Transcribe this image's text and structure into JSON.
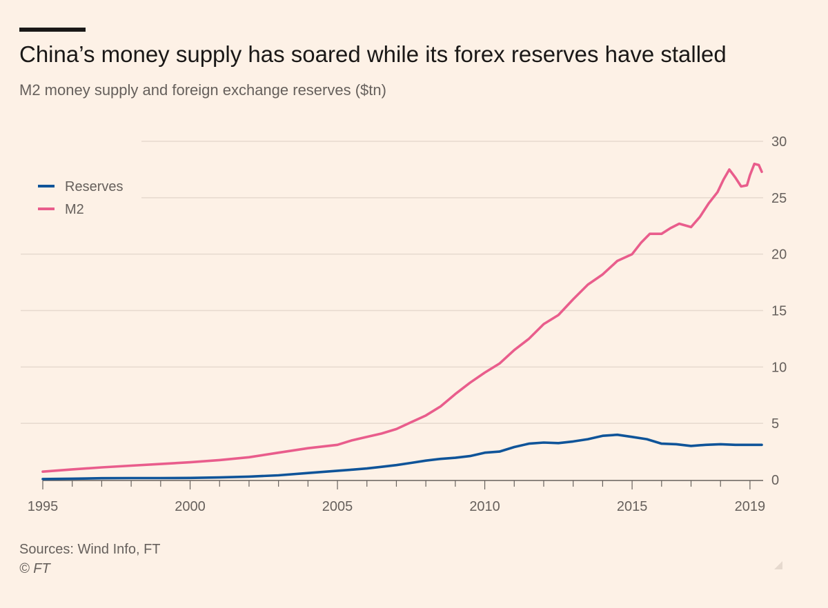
{
  "header": {
    "title": "China’s money supply has soared while its forex reserves have stalled",
    "subtitle": "M2 money supply and foreign exchange reserves ($tn)"
  },
  "footer": {
    "source": "Sources: Wind Info, FT",
    "copyright": "© FT"
  },
  "colors": {
    "background": "#fdf1e6",
    "reserves": "#0f5499",
    "m2": "#e95d8c",
    "grid": "#e6d9ce",
    "axis": "#66605c"
  },
  "chart_data": {
    "type": "line",
    "title": "China’s money supply has soared while its forex reserves have stalled",
    "subtitle": "M2 money supply and foreign exchange reserves ($tn)",
    "xlabel": "",
    "ylabel": "$tn",
    "xlim": [
      1995,
      2019.4
    ],
    "ylim": [
      0,
      30
    ],
    "yticks": [
      0,
      5,
      10,
      15,
      20,
      25,
      30
    ],
    "xtick_labels": [
      {
        "value": 1995,
        "label": "1995"
      },
      {
        "value": 2000,
        "label": "2000"
      },
      {
        "value": 2005,
        "label": "2005"
      },
      {
        "value": 2010,
        "label": "2010"
      },
      {
        "value": 2015,
        "label": "2015"
      },
      {
        "value": 2019,
        "label": "2019"
      }
    ],
    "x_minor_ticks": [
      1995,
      1996,
      1997,
      1998,
      1999,
      2000,
      2001,
      2002,
      2003,
      2004,
      2005,
      2006,
      2007,
      2008,
      2009,
      2010,
      2011,
      2012,
      2013,
      2014,
      2015,
      2016,
      2017,
      2018,
      2019
    ],
    "y_axis_position": "right",
    "grid": true,
    "legend_position": "top-left",
    "series": [
      {
        "name": "Reserves",
        "color": "#0f5499",
        "points": [
          [
            1995.0,
            0.07
          ],
          [
            1996.0,
            0.1
          ],
          [
            1997.0,
            0.14
          ],
          [
            1998.0,
            0.15
          ],
          [
            1999.0,
            0.155
          ],
          [
            2000.0,
            0.165
          ],
          [
            2001.0,
            0.21
          ],
          [
            2002.0,
            0.28
          ],
          [
            2003.0,
            0.4
          ],
          [
            2004.0,
            0.6
          ],
          [
            2005.0,
            0.8
          ],
          [
            2005.5,
            0.9
          ],
          [
            2006.0,
            1.0
          ],
          [
            2006.5,
            1.15
          ],
          [
            2007.0,
            1.3
          ],
          [
            2007.5,
            1.5
          ],
          [
            2008.0,
            1.7
          ],
          [
            2008.5,
            1.85
          ],
          [
            2009.0,
            1.95
          ],
          [
            2009.5,
            2.1
          ],
          [
            2010.0,
            2.4
          ],
          [
            2010.5,
            2.5
          ],
          [
            2011.0,
            2.9
          ],
          [
            2011.5,
            3.2
          ],
          [
            2012.0,
            3.3
          ],
          [
            2012.5,
            3.25
          ],
          [
            2013.0,
            3.4
          ],
          [
            2013.5,
            3.6
          ],
          [
            2014.0,
            3.9
          ],
          [
            2014.5,
            3.99
          ],
          [
            2015.0,
            3.8
          ],
          [
            2015.5,
            3.6
          ],
          [
            2016.0,
            3.2
          ],
          [
            2016.5,
            3.15
          ],
          [
            2017.0,
            3.0
          ],
          [
            2017.5,
            3.1
          ],
          [
            2018.0,
            3.15
          ],
          [
            2018.5,
            3.1
          ],
          [
            2019.0,
            3.1
          ],
          [
            2019.4,
            3.1
          ]
        ]
      },
      {
        "name": "M2",
        "color": "#e95d8c",
        "points": [
          [
            1995.0,
            0.72
          ],
          [
            1996.0,
            0.92
          ],
          [
            1997.0,
            1.1
          ],
          [
            1998.0,
            1.25
          ],
          [
            1999.0,
            1.4
          ],
          [
            2000.0,
            1.55
          ],
          [
            2001.0,
            1.75
          ],
          [
            2002.0,
            2.0
          ],
          [
            2003.0,
            2.4
          ],
          [
            2004.0,
            2.8
          ],
          [
            2005.0,
            3.1
          ],
          [
            2005.5,
            3.5
          ],
          [
            2006.0,
            3.8
          ],
          [
            2006.5,
            4.1
          ],
          [
            2007.0,
            4.5
          ],
          [
            2007.5,
            5.1
          ],
          [
            2008.0,
            5.7
          ],
          [
            2008.5,
            6.5
          ],
          [
            2009.0,
            7.6
          ],
          [
            2009.5,
            8.6
          ],
          [
            2010.0,
            9.5
          ],
          [
            2010.5,
            10.3
          ],
          [
            2011.0,
            11.5
          ],
          [
            2011.5,
            12.5
          ],
          [
            2012.0,
            13.8
          ],
          [
            2012.5,
            14.6
          ],
          [
            2013.0,
            16.0
          ],
          [
            2013.5,
            17.3
          ],
          [
            2014.0,
            18.2
          ],
          [
            2014.5,
            19.4
          ],
          [
            2015.0,
            20.0
          ],
          [
            2015.3,
            21.0
          ],
          [
            2015.6,
            21.8
          ],
          [
            2016.0,
            21.8
          ],
          [
            2016.3,
            22.3
          ],
          [
            2016.6,
            22.7
          ],
          [
            2017.0,
            22.4
          ],
          [
            2017.3,
            23.3
          ],
          [
            2017.6,
            24.5
          ],
          [
            2017.9,
            25.5
          ],
          [
            2018.1,
            26.6
          ],
          [
            2018.3,
            27.5
          ],
          [
            2018.5,
            26.8
          ],
          [
            2018.7,
            26.0
          ],
          [
            2018.9,
            26.1
          ],
          [
            2019.0,
            27.0
          ],
          [
            2019.15,
            28.0
          ],
          [
            2019.3,
            27.9
          ],
          [
            2019.4,
            27.3
          ]
        ]
      }
    ]
  }
}
